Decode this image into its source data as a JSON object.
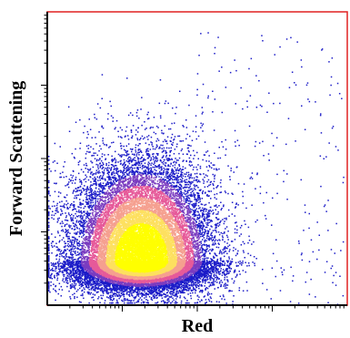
{
  "chart_data": {
    "type": "scatter",
    "title": "",
    "xlabel": "Red",
    "ylabel": "Forward Scattening",
    "x_scale": "log",
    "y_scale": "log",
    "xlim": [
      1,
      10000
    ],
    "ylim": [
      1,
      10000
    ],
    "grid": false,
    "legend": "none",
    "tick_labels_shown": false,
    "density_colors": [
      "#1c1cc8",
      "#7a3cc0",
      "#e65a9a",
      "#f5a090",
      "#fde060",
      "#ffff00"
    ],
    "plot_frame_color": "#e02020",
    "point_cloud": {
      "main_cluster": {
        "x_center": 18,
        "y_center": 4,
        "x_spread_decades": 0.45,
        "y_spread_decades": 0.55,
        "approx_events": 24000
      },
      "sparse_tail": {
        "x_range": [
          100,
          9000
        ],
        "y_range": [
          1,
          6000
        ],
        "approx_events": 260
      }
    }
  }
}
